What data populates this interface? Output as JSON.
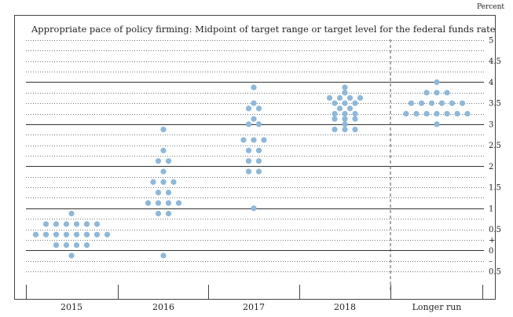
{
  "chart_data": {
    "type": "scatter",
    "title": "Appropriate pace of policy firming: Midpoint of target range or target level for the federal funds rate",
    "unit_label": "Percent",
    "categories": [
      "2015",
      "2016",
      "2017",
      "2018",
      "Longer run"
    ],
    "ylim": [
      -0.5,
      5.0
    ],
    "y_ticks": [
      {
        "value": 5,
        "label": "5"
      },
      {
        "value": 4.5,
        "label": "4.5"
      },
      {
        "value": 4,
        "label": "4"
      },
      {
        "value": 3.5,
        "label": "3.5"
      },
      {
        "value": 3,
        "label": "3"
      },
      {
        "value": 2.5,
        "label": "2.5"
      },
      {
        "value": 2,
        "label": "2"
      },
      {
        "value": 1.5,
        "label": "1.5"
      },
      {
        "value": 1,
        "label": "1"
      },
      {
        "value": 0.5,
        "label": "0.5"
      },
      {
        "value": 0.25,
        "label": "+"
      },
      {
        "value": 0,
        "label": "0"
      },
      {
        "value": -0.25,
        "label": "–"
      },
      {
        "value": -0.5,
        "label": "0.5"
      }
    ],
    "solid_gridlines": [
      4,
      3,
      2,
      1,
      0
    ],
    "marker_color": "#8db8db",
    "dots": [
      {
        "category": "2015",
        "rates": [
          0.875,
          0.625,
          0.625,
          0.625,
          0.625,
          0.625,
          0.625,
          0.375,
          0.375,
          0.375,
          0.375,
          0.375,
          0.375,
          0.375,
          0.375,
          0.125,
          0.125,
          0.125,
          0.125,
          -0.125
        ]
      },
      {
        "category": "2016",
        "rates": [
          2.875,
          2.375,
          2.125,
          2.125,
          1.875,
          1.625,
          1.625,
          1.625,
          1.375,
          1.375,
          1.125,
          1.125,
          1.125,
          1.125,
          0.875,
          0.875,
          -0.125
        ]
      },
      {
        "category": "2017",
        "rates": [
          3.875,
          3.5,
          3.375,
          3.375,
          3.125,
          3.0,
          3.0,
          2.625,
          2.625,
          2.625,
          2.375,
          2.375,
          2.125,
          2.125,
          1.875,
          1.875,
          1.0
        ]
      },
      {
        "category": "2018",
        "rates": [
          3.875,
          3.75,
          3.625,
          3.625,
          3.625,
          3.625,
          3.5,
          3.5,
          3.5,
          3.375,
          3.375,
          3.25,
          3.25,
          3.25,
          3.125,
          3.125,
          3.125,
          3.0,
          2.875,
          2.875,
          2.875
        ]
      },
      {
        "category": "Longer run",
        "rates": [
          4.0,
          3.75,
          3.75,
          3.75,
          3.5,
          3.5,
          3.5,
          3.5,
          3.5,
          3.5,
          3.25,
          3.25,
          3.25,
          3.25,
          3.25,
          3.25,
          3.25,
          3.0
        ]
      }
    ]
  }
}
